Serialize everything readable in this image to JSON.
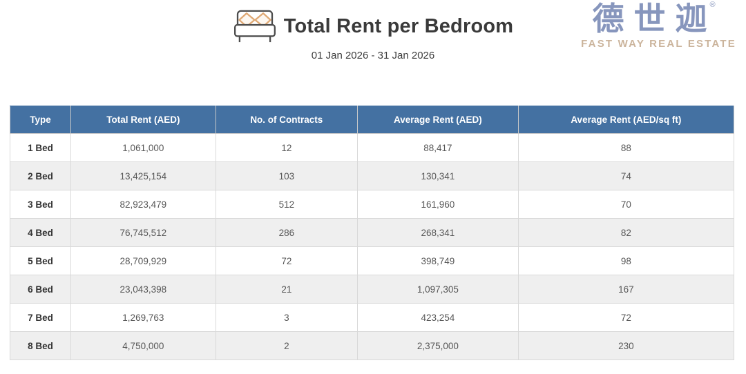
{
  "header": {
    "icon": "bed-icon",
    "date_range": "01 Jan 2026 - 31 Jan 2026"
  },
  "logo": {
    "name_cn": "德世迦",
    "registered_mark": "®",
    "tagline": "FAST WAY REAL ESTATE"
  },
  "chart_data": {
    "type": "table",
    "title": "Total Rent per Bedroom",
    "subtitle": "01 Jan 2026 - 31 Jan 2026",
    "columns": [
      "Type",
      "Total Rent (AED)",
      "No. of Contracts",
      "Average Rent (AED)",
      "Average Rent (AED/sq ft)"
    ],
    "rows": [
      [
        "1 Bed",
        "1,061,000",
        "12",
        "88,417",
        "88"
      ],
      [
        "2 Bed",
        "13,425,154",
        "103",
        "130,341",
        "74"
      ],
      [
        "3 Bed",
        "82,923,479",
        "512",
        "161,960",
        "70"
      ],
      [
        "4 Bed",
        "76,745,512",
        "286",
        "268,341",
        "82"
      ],
      [
        "5 Bed",
        "28,709,929",
        "72",
        "398,749",
        "98"
      ],
      [
        "6 Bed",
        "23,043,398",
        "21",
        "1,097,305",
        "167"
      ],
      [
        "7 Bed",
        "1,269,763",
        "3",
        "423,254",
        "72"
      ],
      [
        "8 Bed",
        "4,750,000",
        "2",
        "2,375,000",
        "230"
      ]
    ],
    "column_widths_pct": [
      8.4,
      20.0,
      19.6,
      22.2,
      29.8
    ],
    "layout_hints": {
      "striped_rows": true,
      "header_position": "top"
    }
  },
  "colors": {
    "table_header_bg": "#4471a2",
    "table_header_text": "#ffffff",
    "row_alt_bg": "#efefef",
    "cell_border": "#d9d9d9",
    "title_text": "#3a3a3a",
    "cell_text": "#565656",
    "logo_blue": "#8796bd",
    "logo_tan": "#cbb49c",
    "pillow_tan": "#dfa873",
    "bed_frame": "#4d4d4d"
  }
}
